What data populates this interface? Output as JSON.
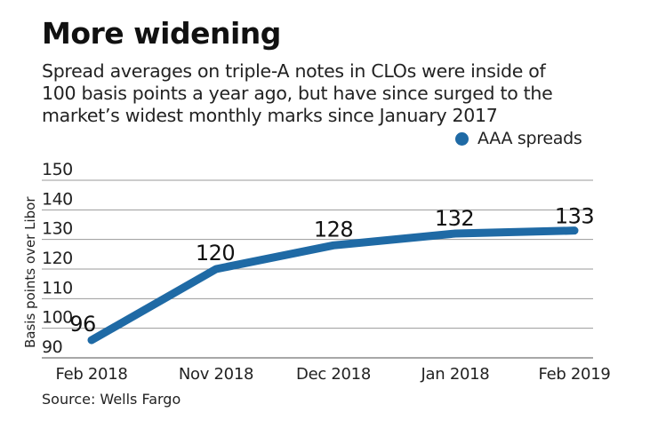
{
  "chart_data": {
    "type": "line",
    "title": "More widening",
    "subtitle_lines": [
      "Spread averages on triple-A notes in CLOs were inside of",
      "100 basis points a year ago, but have since surged to the",
      "market’s widest monthly marks since January 2017"
    ],
    "xlabel": "",
    "ylabel": "Basis points over Libor",
    "categories": [
      "Feb 2018",
      "Nov 2018",
      "Dec 2018",
      "Jan 2018",
      "Feb 2019"
    ],
    "series": [
      {
        "name": "AAA spreads",
        "values": [
          96,
          120,
          128,
          132,
          133
        ],
        "color": "#1f6aa5"
      }
    ],
    "data_labels": [
      "96",
      "120",
      "128",
      "132",
      "133"
    ],
    "yticks": [
      90,
      100,
      110,
      120,
      130,
      140,
      150
    ],
    "ylim": [
      90,
      150
    ],
    "grid": true,
    "legend": "top-right",
    "source": "Source: Wells Fargo"
  }
}
